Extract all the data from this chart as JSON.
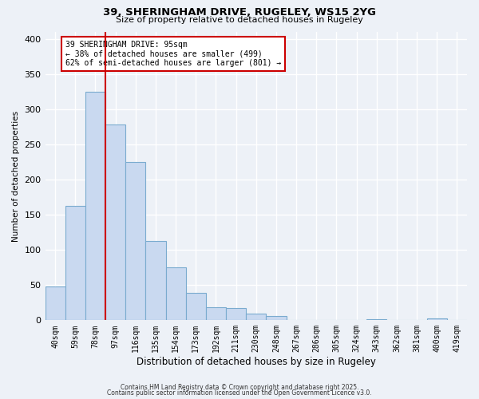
{
  "title": "39, SHERINGHAM DRIVE, RUGELEY, WS15 2YG",
  "subtitle": "Size of property relative to detached houses in Rugeley",
  "xlabel": "Distribution of detached houses by size in Rugeley",
  "ylabel": "Number of detached properties",
  "bar_labels": [
    "40sqm",
    "59sqm",
    "78sqm",
    "97sqm",
    "116sqm",
    "135sqm",
    "154sqm",
    "173sqm",
    "192sqm",
    "211sqm",
    "230sqm",
    "248sqm",
    "267sqm",
    "286sqm",
    "305sqm",
    "324sqm",
    "343sqm",
    "362sqm",
    "381sqm",
    "400sqm",
    "419sqm"
  ],
  "bar_heights": [
    48,
    163,
    325,
    278,
    225,
    113,
    75,
    39,
    18,
    17,
    10,
    6,
    0,
    0,
    0,
    0,
    2,
    0,
    0,
    3,
    0
  ],
  "bar_color": "#c9d9f0",
  "bar_edge_color": "#7aabcf",
  "vline_color": "#cc0000",
  "annotation_text": "39 SHERINGHAM DRIVE: 95sqm\n← 38% of detached houses are smaller (499)\n62% of semi-detached houses are larger (801) →",
  "annotation_box_color": "#ffffff",
  "annotation_box_edge": "#cc0000",
  "ylim": [
    0,
    410
  ],
  "yticks": [
    0,
    50,
    100,
    150,
    200,
    250,
    300,
    350,
    400
  ],
  "background_color": "#edf1f7",
  "grid_color": "#ffffff",
  "footer1": "Contains HM Land Registry data © Crown copyright and database right 2025.",
  "footer2": "Contains public sector information licensed under the Open Government Licence v3.0."
}
